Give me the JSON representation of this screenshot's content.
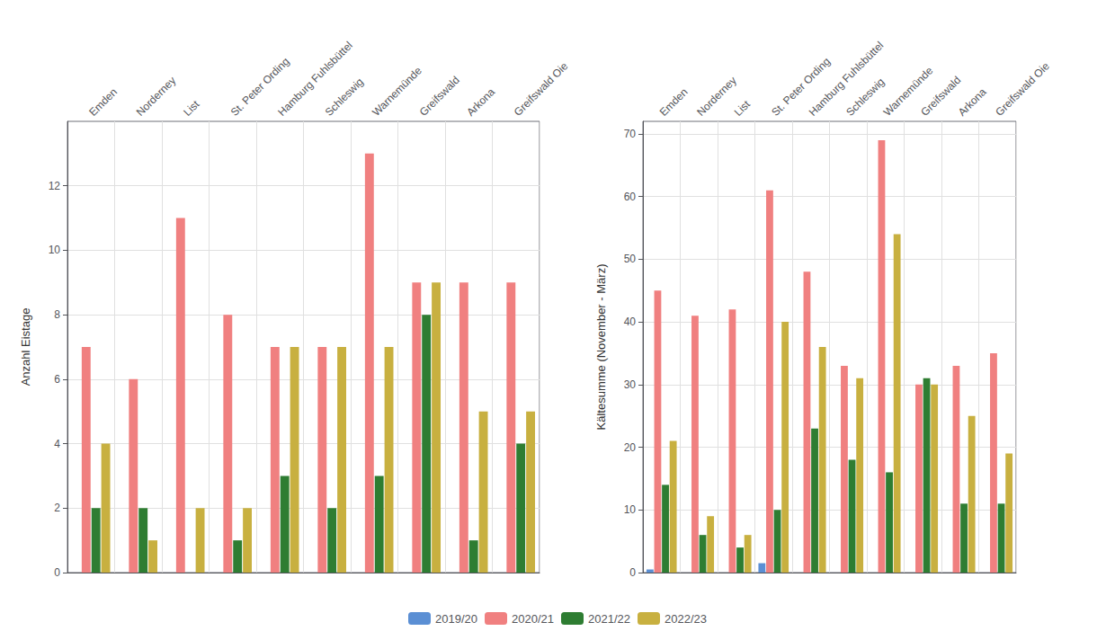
{
  "chart_data": [
    {
      "type": "bar",
      "ylabel": "Anzahl Eistage",
      "categories": [
        "Emden",
        "Norderney",
        "List",
        "St. Peter Ording",
        "Hamburg Fuhlsbüttel",
        "Schleswig",
        "Warnemünde",
        "Greifswald",
        "Arkona",
        "Greifswald Oie"
      ],
      "series": [
        {
          "name": "2019/20",
          "color": "#5b8fd4",
          "values": [
            0,
            0,
            0,
            0,
            0,
            0,
            0,
            0,
            0,
            0
          ]
        },
        {
          "name": "2020/21",
          "color": "#f08080",
          "values": [
            7,
            6,
            11,
            8,
            7,
            7,
            13,
            9,
            9,
            9
          ]
        },
        {
          "name": "2021/22",
          "color": "#2e7d32",
          "values": [
            2,
            2,
            0,
            1,
            3,
            2,
            3,
            8,
            1,
            4
          ]
        },
        {
          "name": "2022/23",
          "color": "#c8b040",
          "values": [
            4,
            1,
            2,
            2,
            7,
            7,
            7,
            9,
            5,
            5
          ]
        }
      ],
      "ylim": [
        0,
        14
      ],
      "yticks": [
        0,
        2,
        4,
        6,
        8,
        10,
        12
      ],
      "grid": true,
      "legend": "bottom"
    },
    {
      "type": "bar",
      "ylabel": "Kältesumme (November - März)",
      "categories": [
        "Emden",
        "Norderney",
        "List",
        "St. Peter Ording",
        "Hamburg Fuhlsbüttel",
        "Schleswig",
        "Warnemünde",
        "Greifswald",
        "Arkona",
        "Greifswald Oie"
      ],
      "series": [
        {
          "name": "2019/20",
          "color": "#5b8fd4",
          "values": [
            0.5,
            0,
            0,
            1.5,
            0,
            0,
            0,
            0,
            0,
            0
          ]
        },
        {
          "name": "2020/21",
          "color": "#f08080",
          "values": [
            45,
            41,
            42,
            61,
            48,
            33,
            69,
            30,
            33,
            35
          ]
        },
        {
          "name": "2021/22",
          "color": "#2e7d32",
          "values": [
            14,
            6,
            4,
            10,
            23,
            18,
            16,
            31,
            11,
            11
          ]
        },
        {
          "name": "2022/23",
          "color": "#c8b040",
          "values": [
            21,
            9,
            6,
            40,
            36,
            31,
            54,
            30,
            25,
            19
          ]
        }
      ],
      "ylim": [
        0,
        72
      ],
      "yticks": [
        0,
        10,
        20,
        30,
        40,
        50,
        60,
        70
      ],
      "grid": true,
      "legend": "bottom"
    }
  ]
}
